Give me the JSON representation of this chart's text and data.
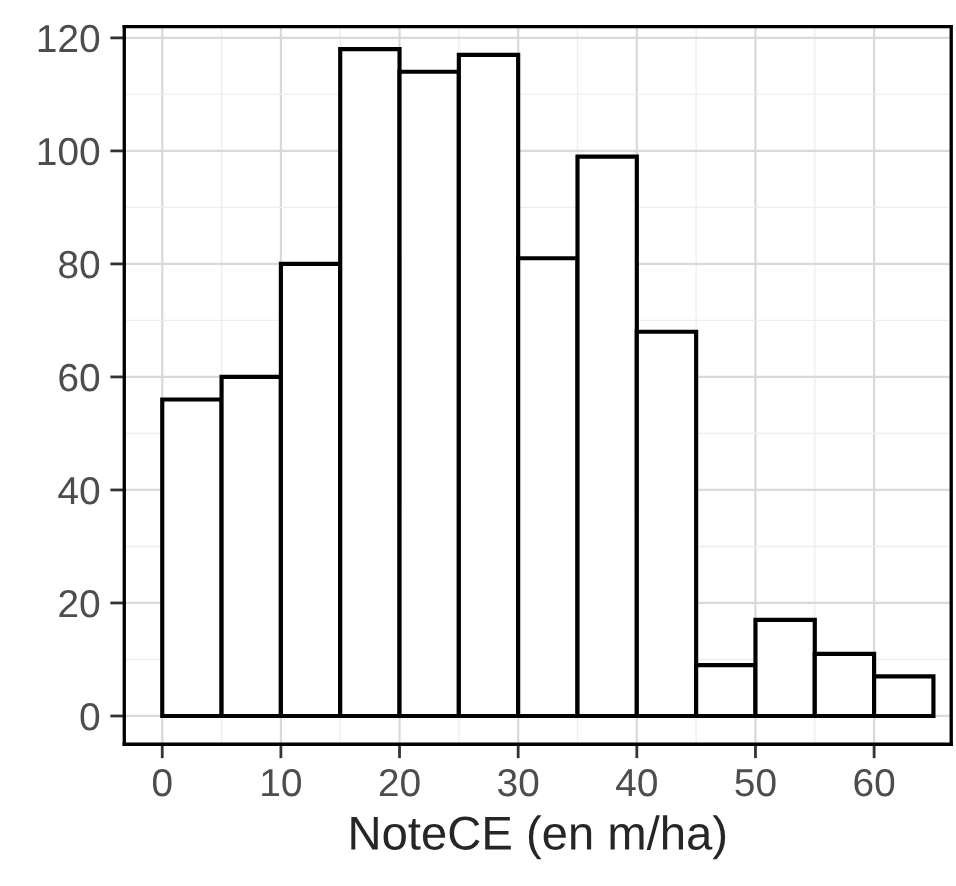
{
  "chart_data": {
    "type": "histogram",
    "xlabel": "NoteCE (en m/ha)",
    "bins": [
      0,
      5,
      10,
      15,
      20,
      25,
      30,
      35,
      40,
      45,
      50,
      55,
      60,
      65
    ],
    "values": [
      56,
      60,
      80,
      118,
      114,
      117,
      81,
      99,
      68,
      9,
      17,
      11,
      7
    ],
    "color": "#ffffff",
    "xlim": [
      -3.2,
      66.5
    ],
    "ylim": [
      -5,
      122
    ],
    "xticks": [
      0,
      10,
      20,
      30,
      40,
      50,
      60
    ],
    "yticks": [
      0,
      20,
      40,
      60,
      80,
      100,
      120
    ],
    "grid": true
  }
}
